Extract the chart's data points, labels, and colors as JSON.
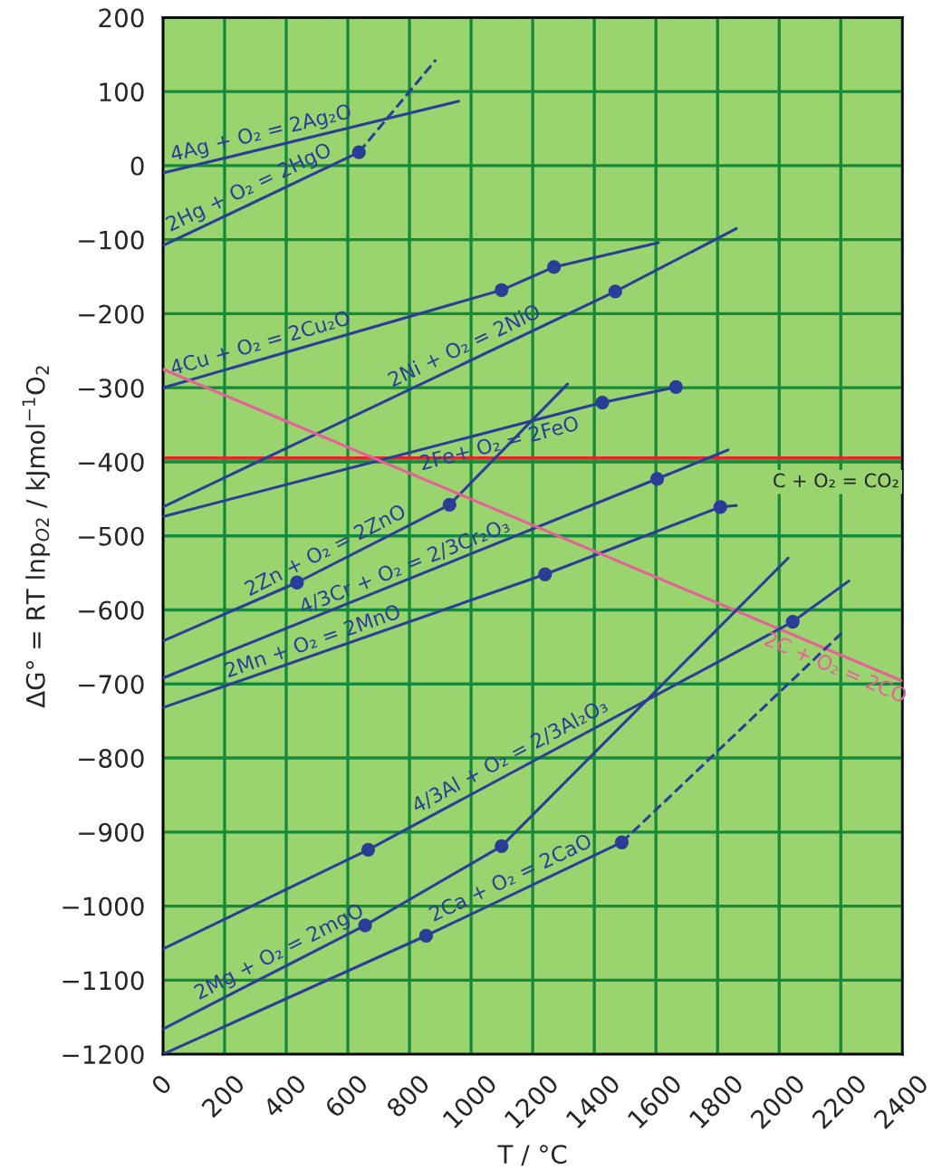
{
  "chart_data": {
    "type": "line",
    "xlabel": "T / °C",
    "ylabel": "ΔG° = RT lnp$_{O2}$ / kJmol$^{−1}$O$_{2}$",
    "xlim": [
      0,
      2400
    ],
    "ylim": [
      -1200,
      200
    ],
    "xticks": [
      0,
      200,
      400,
      600,
      800,
      1000,
      1200,
      1400,
      1600,
      1800,
      2000,
      2200,
      2400
    ],
    "yticks": [
      -1200,
      -1100,
      -1000,
      -900,
      -800,
      -700,
      -600,
      -500,
      -400,
      -300,
      -200,
      -100,
      0,
      100,
      200
    ],
    "grid": true,
    "line_style": "solid",
    "marker": "none",
    "series": [
      {
        "name": "4Ag + O₂ = 2Ag₂O",
        "color": "#2a3d97",
        "x": [
          0,
          960
        ],
        "values": [
          -10,
          87
        ]
      },
      {
        "name": "2Hg + O₂ = 2HgO",
        "color": "#2a3d97",
        "x": [
          0,
          636
        ],
        "values": [
          -108,
          18
        ]
      },
      {
        "color": "#2a3d97",
        "line_style": "dashed",
        "x": [
          636,
          886
        ],
        "values": [
          18,
          143
        ]
      },
      {
        "name": "4Cu + O₂ = 2Cu₂O",
        "color": "#2a3d97",
        "x": [
          0,
          1099,
          1269,
          1608
        ],
        "values": [
          -300,
          -168,
          -137,
          -104
        ]
      },
      {
        "name": "2Ni + O₂ = 2NiO",
        "color": "#2a3d97",
        "x": [
          0,
          1468,
          1861
        ],
        "values": [
          -461,
          -170,
          -85
        ]
      },
      {
        "name": "2Fe+ O₂ = 2FeO",
        "color": "#2a3d97",
        "x": [
          0,
          1426,
          1665
        ],
        "values": [
          -474,
          -320,
          -299
        ]
      },
      {
        "name": "2Zn + O₂ = 2ZnO",
        "color": "#2a3d97",
        "x": [
          0,
          435,
          930,
          1313
        ],
        "values": [
          -642,
          -563,
          -458,
          -295
        ]
      },
      {
        "name": "4/3Cr + O₂ = 2/3Cr₂O₃",
        "color": "#2a3d97",
        "x": [
          0,
          1604,
          1834
        ],
        "values": [
          -692,
          -423,
          -384
        ]
      },
      {
        "name": "2Mn + O₂ = 2MnO",
        "color": "#2a3d97",
        "x": [
          0,
          1240,
          1809,
          1861
        ],
        "values": [
          -732,
          -552,
          -461,
          -459
        ]
      },
      {
        "name": "2C + O₂ = 2CO",
        "color": "#e8609a",
        "x": [
          0,
          2400
        ],
        "values": [
          -275,
          -696
        ]
      },
      {
        "name": "4/3Al + O₂ = 2/3Al₂O₃",
        "color": "#2a3d97",
        "x": [
          0,
          666,
          2044,
          2226
        ],
        "values": [
          -1058,
          -924,
          -616,
          -561
        ]
      },
      {
        "name": "2Mg + O₂ = 2mgO",
        "color": "#2a3d97",
        "x": [
          0,
          656,
          1099,
          2029
        ],
        "values": [
          -1166,
          -1026,
          -919,
          -530
        ]
      },
      {
        "name": "2Ca + O₂ = 2CaO",
        "color": "#2a3d97",
        "x": [
          0,
          854,
          1489
        ],
        "values": [
          -1200,
          -1040,
          -914
        ]
      },
      {
        "color": "#2a3d97",
        "line_style": "dashed",
        "x": [
          1489,
          2211
        ],
        "values": [
          -914,
          -628
        ]
      },
      {
        "type": "scatter",
        "marker": "circle",
        "color": "#2a3d97",
        "x": [
          636,
          1099,
          1269,
          1468,
          1426,
          1665,
          435,
          930,
          1604,
          1240,
          1809,
          666,
          2044,
          656,
          1099,
          854,
          1489
        ],
        "values": [
          18,
          -168,
          -137,
          -170,
          -320,
          -299,
          -563,
          -458,
          -423,
          -552,
          -461,
          -924,
          -616,
          -1026,
          -919,
          -1040,
          -914
        ]
      }
    ],
    "ref_lines": [
      {
        "axis": "y",
        "value": -395,
        "label": "C + O₂ = CO₂",
        "color": "#e8262a",
        "line_style": "solid"
      }
    ]
  }
}
